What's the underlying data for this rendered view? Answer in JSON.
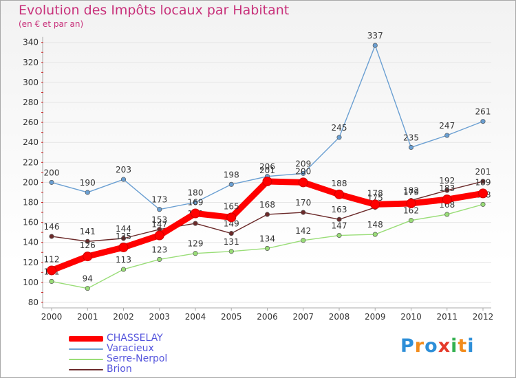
{
  "chart_data": {
    "type": "line",
    "title": "Evolution des Impôts locaux par Habitant",
    "subtitle": "(en € et par an)",
    "x": [
      "2000",
      "2001",
      "2002",
      "2003",
      "2004",
      "2005",
      "2006",
      "2007",
      "2008",
      "2009",
      "2010",
      "2011",
      "2012"
    ],
    "ylim": [
      80,
      340
    ],
    "yticks": [
      80,
      100,
      120,
      140,
      160,
      180,
      200,
      220,
      240,
      260,
      280,
      300,
      320,
      340
    ],
    "series": [
      {
        "name": "Varacieux",
        "color": "#6a9fd2",
        "values": [
          200,
          190,
          203,
          173,
          180,
          198,
          206,
          209,
          245,
          337,
          235,
          247,
          261
        ]
      },
      {
        "name": "Serre-Nerpol",
        "color": "#99dd77",
        "values": [
          101,
          94,
          113,
          123,
          129,
          131,
          134,
          142,
          147,
          148,
          162,
          168,
          178
        ]
      },
      {
        "name": "Brion",
        "color": "#6b2a2a",
        "values": [
          146,
          141,
          144,
          153,
          159,
          149,
          168,
          170,
          163,
          175,
          182,
          192,
          201
        ]
      },
      {
        "name": "CHASSELAY",
        "color": "#ff0000",
        "values": [
          112,
          126,
          135,
          147,
          169,
          165,
          201,
          200,
          188,
          178,
          179,
          183,
          189
        ]
      }
    ]
  },
  "legend": [
    {
      "name": "CHASSELAY",
      "color": "#ff0000"
    },
    {
      "name": "Varacieux",
      "color": "#6a9fd2"
    },
    {
      "name": "Serre-Nerpol",
      "color": "#99dd77"
    },
    {
      "name": "Brion",
      "color": "#6b2a2a"
    }
  ],
  "logo": {
    "letters": [
      "P",
      "r",
      "o",
      "x",
      "i",
      "t",
      "i"
    ],
    "colors": [
      "#2e8fd8",
      "#f28c1c",
      "#2e8fd8",
      "#e53a2a",
      "#33b050",
      "#f28c1c",
      "#2e8fd8"
    ]
  }
}
